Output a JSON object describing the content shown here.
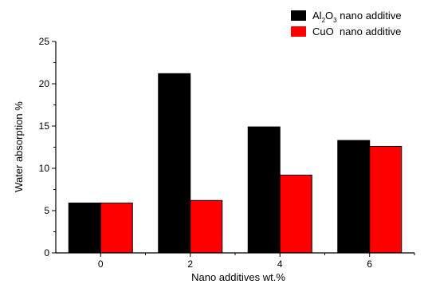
{
  "chart_data": {
    "type": "bar",
    "xlabel": "Nano additives wt.%",
    "ylabel": "Water absorption %",
    "categories": [
      "0",
      "2",
      "4",
      "6"
    ],
    "ylim": [
      0,
      25
    ],
    "yticks": [
      0,
      5,
      10,
      15,
      20,
      25
    ],
    "grid": false,
    "legend_position": "top-right",
    "series": [
      {
        "name": "Al2O3 nano additive",
        "legend_main": "Al",
        "legend_sub1": "2",
        "legend_mid": "O",
        "legend_sub2": "3",
        "legend_rest": " nano additive",
        "color": "#000000",
        "values": [
          5.9,
          21.2,
          14.9,
          13.3
        ]
      },
      {
        "name": "CuO  nano additive",
        "color": "#ff0000",
        "values": [
          5.9,
          6.2,
          9.2,
          12.6
        ]
      }
    ]
  }
}
